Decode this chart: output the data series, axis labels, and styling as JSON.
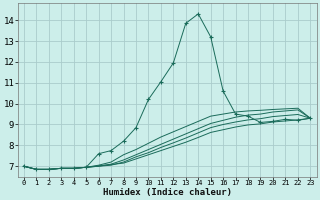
{
  "xlabel": "Humidex (Indice chaleur)",
  "ylabel": "",
  "bg_color": "#cceeea",
  "grid_color": "#aacccc",
  "line_color": "#1a6b5a",
  "xlim": [
    -0.5,
    23.5
  ],
  "ylim": [
    6.5,
    14.8
  ],
  "xticks": [
    0,
    1,
    2,
    3,
    4,
    5,
    6,
    7,
    8,
    9,
    10,
    11,
    12,
    13,
    14,
    15,
    16,
    17,
    18,
    19,
    20,
    21,
    22,
    23
  ],
  "yticks": [
    7,
    8,
    9,
    10,
    11,
    12,
    13,
    14
  ],
  "lines": [
    {
      "x": [
        0,
        1,
        2,
        3,
        4,
        5,
        6,
        7,
        8,
        9,
        10,
        11,
        12,
        13,
        14,
        15,
        16,
        17,
        18,
        19,
        20,
        21,
        22,
        23
      ],
      "y": [
        7.0,
        6.85,
        6.85,
        6.9,
        6.9,
        6.95,
        7.6,
        7.75,
        8.2,
        8.85,
        10.2,
        11.05,
        11.95,
        13.85,
        14.3,
        13.2,
        10.6,
        9.5,
        9.4,
        9.1,
        9.15,
        9.25,
        9.2,
        9.3
      ],
      "marker": "+"
    },
    {
      "x": [
        0,
        1,
        2,
        3,
        4,
        5,
        6,
        7,
        8,
        9,
        10,
        11,
        12,
        13,
        14,
        15,
        16,
        17,
        18,
        19,
        20,
        21,
        22,
        23
      ],
      "y": [
        7.0,
        6.85,
        6.85,
        6.9,
        6.9,
        6.95,
        7.0,
        7.1,
        7.3,
        7.55,
        7.8,
        8.05,
        8.3,
        8.55,
        8.8,
        9.05,
        9.2,
        9.35,
        9.45,
        9.5,
        9.6,
        9.65,
        9.7,
        9.3
      ],
      "marker": null
    },
    {
      "x": [
        0,
        1,
        2,
        3,
        4,
        5,
        6,
        7,
        8,
        9,
        10,
        11,
        12,
        13,
        14,
        15,
        16,
        17,
        18,
        19,
        20,
        21,
        22,
        23
      ],
      "y": [
        7.0,
        6.85,
        6.85,
        6.9,
        6.9,
        6.95,
        7.0,
        7.05,
        7.2,
        7.45,
        7.65,
        7.9,
        8.12,
        8.35,
        8.6,
        8.85,
        9.0,
        9.12,
        9.22,
        9.28,
        9.38,
        9.43,
        9.48,
        9.3
      ],
      "marker": null
    },
    {
      "x": [
        0,
        1,
        2,
        3,
        4,
        5,
        6,
        7,
        8,
        9,
        10,
        11,
        12,
        13,
        14,
        15,
        16,
        17,
        18,
        19,
        20,
        21,
        22,
        23
      ],
      "y": [
        7.0,
        6.85,
        6.85,
        6.9,
        6.9,
        6.95,
        7.05,
        7.2,
        7.55,
        7.8,
        8.1,
        8.4,
        8.65,
        8.9,
        9.15,
        9.4,
        9.5,
        9.6,
        9.65,
        9.68,
        9.72,
        9.75,
        9.78,
        9.3
      ],
      "marker": null
    },
    {
      "x": [
        0,
        1,
        2,
        3,
        4,
        5,
        6,
        7,
        8,
        9,
        10,
        11,
        12,
        13,
        14,
        15,
        16,
        17,
        18,
        19,
        20,
        21,
        22,
        23
      ],
      "y": [
        7.0,
        6.85,
        6.85,
        6.9,
        6.9,
        6.95,
        7.02,
        7.08,
        7.15,
        7.35,
        7.55,
        7.75,
        7.95,
        8.15,
        8.38,
        8.62,
        8.75,
        8.88,
        8.98,
        9.03,
        9.12,
        9.17,
        9.22,
        9.3
      ],
      "marker": null
    }
  ]
}
